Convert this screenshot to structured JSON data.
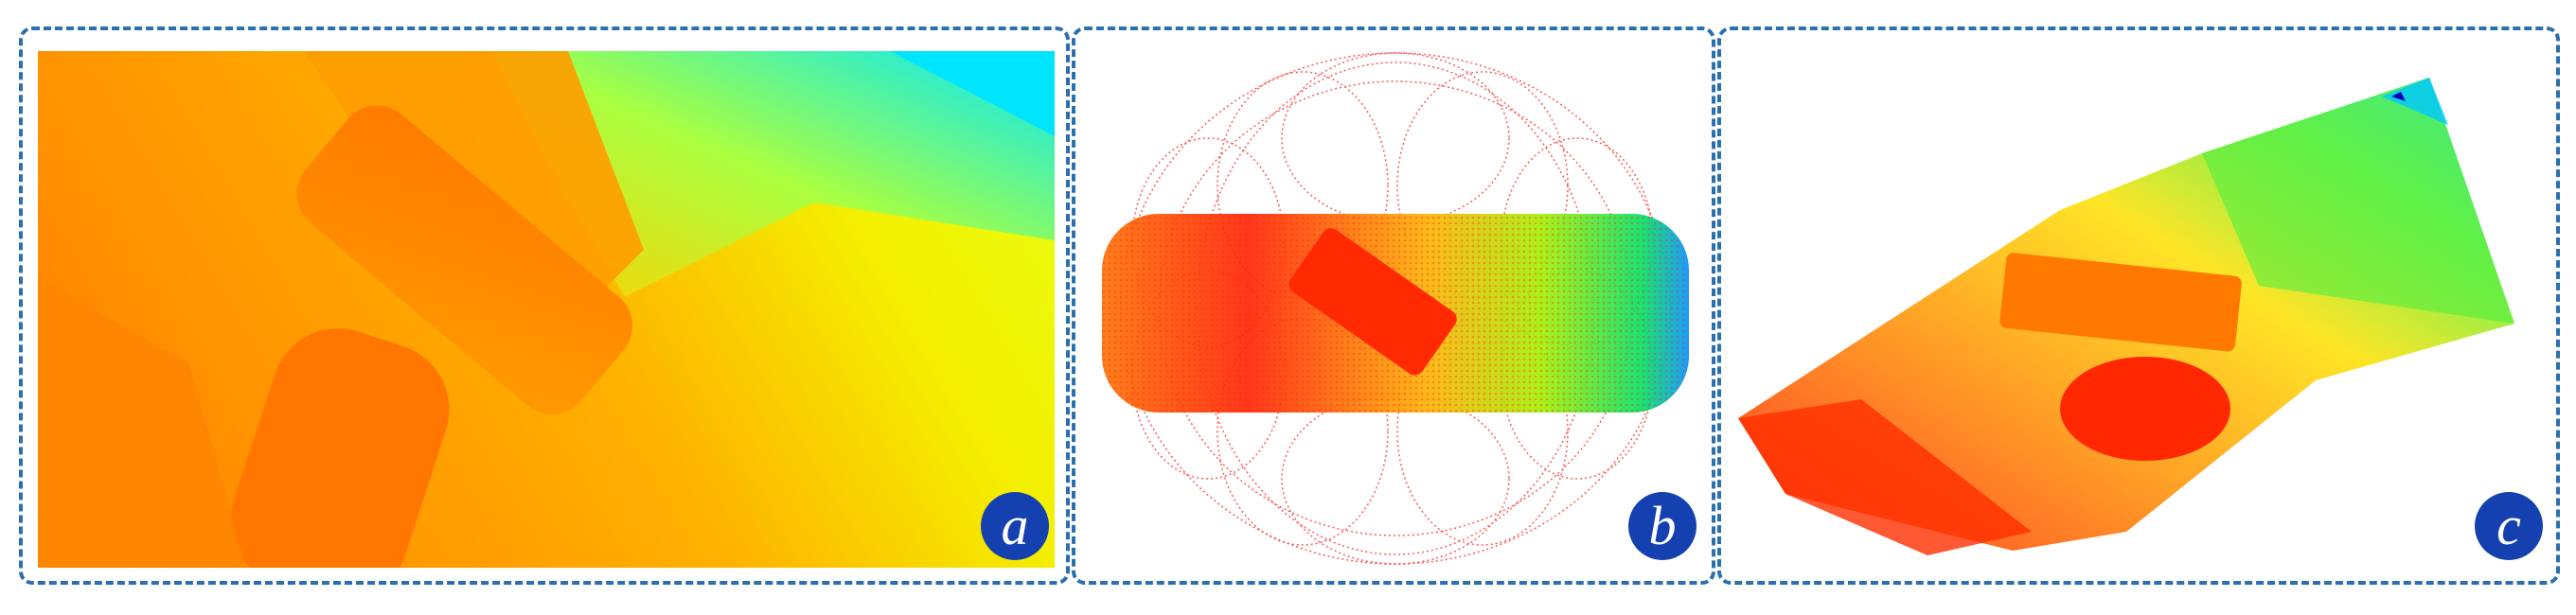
{
  "panels": [
    {
      "label": "a"
    },
    {
      "label": "b"
    },
    {
      "label": "c"
    }
  ],
  "colors": {
    "border": "#2a6fb0",
    "badge": "#1541b0",
    "badge_text": "#ffffff",
    "jet_red": "#ff0000",
    "jet_orange": "#ff8000",
    "jet_yellow": "#ffff00",
    "jet_green": "#00e000",
    "jet_cyan": "#00e5ff",
    "jet_blue": "#0000cc"
  }
}
